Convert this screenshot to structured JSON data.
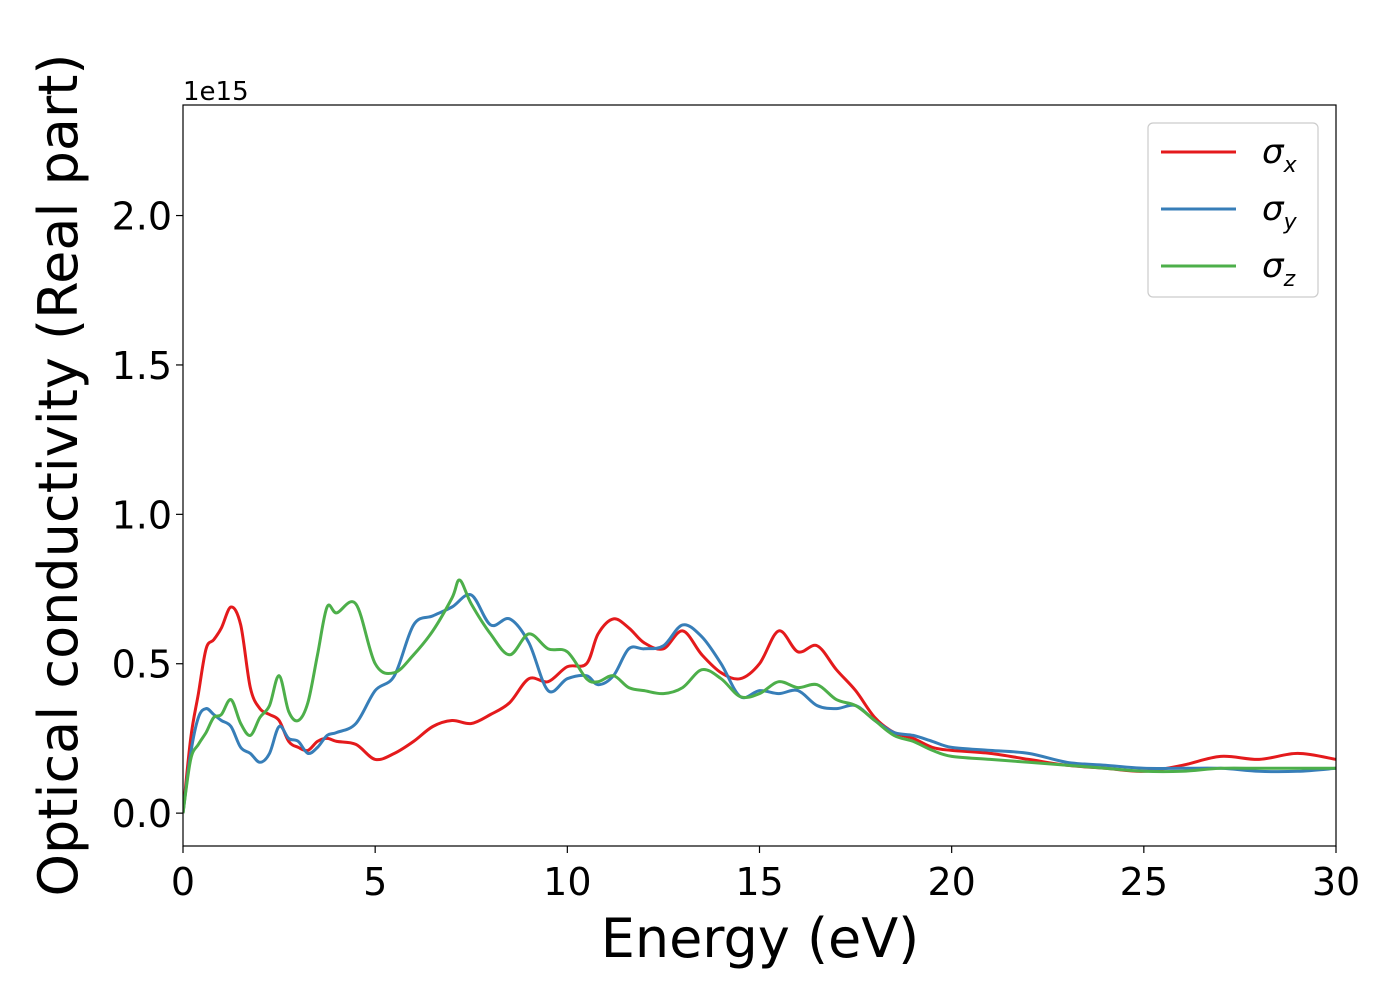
{
  "chart_data": {
    "type": "line",
    "xlabel": "Energy (eV)",
    "ylabel": "Optical conductivity (Real part)",
    "y_offset_label": "1e15",
    "xlim": [
      0,
      30
    ],
    "ylim": [
      -0.11,
      2.37
    ],
    "x_ticks": [
      0,
      5,
      10,
      15,
      20,
      25,
      30
    ],
    "x_tick_labels": [
      "0",
      "5",
      "10",
      "15",
      "20",
      "25",
      "30"
    ],
    "y_ticks": [
      0.0,
      0.5,
      1.0,
      1.5,
      2.0
    ],
    "y_tick_labels": [
      "0.0",
      "0.5",
      "1.0",
      "1.5",
      "2.0"
    ],
    "grid": false,
    "legend_position": "top-right",
    "series": [
      {
        "name": "σ",
        "subscript": "x",
        "color": "#e41a1c",
        "x": [
          0,
          0.2,
          0.4,
          0.6,
          0.8,
          1.0,
          1.25,
          1.5,
          1.75,
          2.0,
          2.25,
          2.5,
          2.75,
          3.0,
          3.25,
          3.5,
          3.75,
          4.0,
          4.5,
          5.0,
          5.5,
          6.0,
          6.5,
          7.0,
          7.5,
          8.0,
          8.5,
          9.0,
          9.5,
          10.0,
          10.5,
          10.8,
          11.2,
          11.6,
          12.0,
          12.5,
          13.0,
          13.5,
          14.0,
          14.5,
          15.0,
          15.5,
          16.0,
          16.5,
          17.0,
          17.5,
          18.0,
          18.5,
          19.0,
          19.5,
          20.0,
          21.0,
          22.0,
          23.0,
          24.0,
          25.0,
          26.0,
          27.0,
          28.0,
          29.0,
          30.0
        ],
        "y": [
          0.0,
          0.25,
          0.4,
          0.55,
          0.58,
          0.62,
          0.69,
          0.63,
          0.42,
          0.35,
          0.33,
          0.31,
          0.24,
          0.22,
          0.21,
          0.24,
          0.25,
          0.24,
          0.23,
          0.18,
          0.2,
          0.24,
          0.29,
          0.31,
          0.3,
          0.33,
          0.37,
          0.45,
          0.44,
          0.49,
          0.5,
          0.6,
          0.65,
          0.62,
          0.57,
          0.55,
          0.61,
          0.53,
          0.47,
          0.45,
          0.5,
          0.61,
          0.54,
          0.56,
          0.48,
          0.41,
          0.32,
          0.27,
          0.25,
          0.22,
          0.21,
          0.2,
          0.18,
          0.16,
          0.15,
          0.14,
          0.16,
          0.19,
          0.18,
          0.2,
          0.18
        ]
      },
      {
        "name": "σ",
        "subscript": "y",
        "color": "#377eb8",
        "x": [
          0,
          0.2,
          0.4,
          0.6,
          0.8,
          1.0,
          1.25,
          1.5,
          1.75,
          2.0,
          2.25,
          2.5,
          2.75,
          3.0,
          3.25,
          3.5,
          3.75,
          4.0,
          4.5,
          5.0,
          5.5,
          6.0,
          6.5,
          7.0,
          7.5,
          8.0,
          8.5,
          9.0,
          9.5,
          10.0,
          10.5,
          10.8,
          11.2,
          11.6,
          12.0,
          12.5,
          13.0,
          13.5,
          14.0,
          14.5,
          15.0,
          15.5,
          16.0,
          16.5,
          17.0,
          17.5,
          18.0,
          18.5,
          19.0,
          19.5,
          20.0,
          21.0,
          22.0,
          23.0,
          24.0,
          25.0,
          26.0,
          27.0,
          28.0,
          29.0,
          30.0
        ],
        "y": [
          0.0,
          0.2,
          0.32,
          0.35,
          0.33,
          0.31,
          0.29,
          0.22,
          0.2,
          0.17,
          0.2,
          0.29,
          0.25,
          0.24,
          0.2,
          0.22,
          0.26,
          0.27,
          0.3,
          0.41,
          0.46,
          0.63,
          0.66,
          0.69,
          0.73,
          0.63,
          0.65,
          0.57,
          0.41,
          0.45,
          0.46,
          0.43,
          0.46,
          0.55,
          0.55,
          0.56,
          0.63,
          0.59,
          0.5,
          0.39,
          0.41,
          0.4,
          0.41,
          0.36,
          0.35,
          0.36,
          0.31,
          0.27,
          0.26,
          0.24,
          0.22,
          0.21,
          0.2,
          0.17,
          0.16,
          0.15,
          0.15,
          0.15,
          0.14,
          0.14,
          0.15
        ]
      },
      {
        "name": "σ",
        "subscript": "z",
        "color": "#4daf4a",
        "x": [
          0,
          0.2,
          0.4,
          0.6,
          0.8,
          1.0,
          1.25,
          1.5,
          1.75,
          2.0,
          2.25,
          2.5,
          2.75,
          3.0,
          3.25,
          3.5,
          3.75,
          4.0,
          4.5,
          5.0,
          5.5,
          6.0,
          6.5,
          7.0,
          7.2,
          7.5,
          8.0,
          8.5,
          9.0,
          9.5,
          10.0,
          10.5,
          10.8,
          11.2,
          11.6,
          12.0,
          12.5,
          13.0,
          13.5,
          14.0,
          14.5,
          15.0,
          15.5,
          16.0,
          16.5,
          17.0,
          17.5,
          18.0,
          18.5,
          19.0,
          19.5,
          20.0,
          21.0,
          22.0,
          23.0,
          24.0,
          25.0,
          26.0,
          27.0,
          28.0,
          29.0,
          30.0
        ],
        "y": [
          0.0,
          0.18,
          0.23,
          0.27,
          0.32,
          0.33,
          0.38,
          0.3,
          0.26,
          0.32,
          0.36,
          0.46,
          0.34,
          0.31,
          0.37,
          0.53,
          0.69,
          0.67,
          0.7,
          0.5,
          0.47,
          0.53,
          0.61,
          0.72,
          0.78,
          0.7,
          0.6,
          0.53,
          0.6,
          0.55,
          0.54,
          0.45,
          0.44,
          0.46,
          0.42,
          0.41,
          0.4,
          0.42,
          0.48,
          0.45,
          0.39,
          0.4,
          0.44,
          0.42,
          0.43,
          0.38,
          0.36,
          0.31,
          0.26,
          0.24,
          0.21,
          0.19,
          0.18,
          0.17,
          0.16,
          0.15,
          0.14,
          0.14,
          0.15,
          0.15,
          0.15,
          0.15
        ]
      }
    ]
  }
}
